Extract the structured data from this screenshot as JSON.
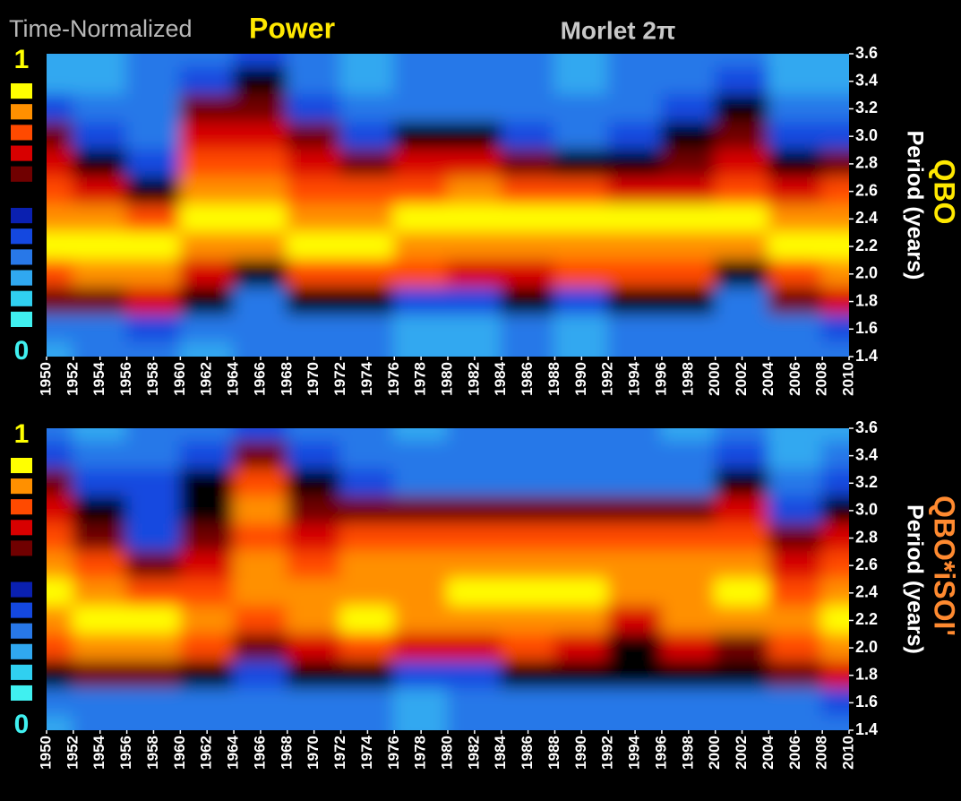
{
  "header": {
    "title": "Time-Normalized",
    "title_emphasis": "Power",
    "subtitle": "Morlet 2π"
  },
  "chart_data": [
    {
      "type": "heatmap",
      "label": "QBO",
      "label_color": "#ffe800",
      "ylabel": "Period (years)",
      "x": [
        1950,
        1954,
        1958,
        1962,
        1966,
        1970,
        1974,
        1978,
        1982,
        1986,
        1990,
        1994,
        1998,
        2002,
        2006,
        2010
      ],
      "y": [
        3.6,
        3.4,
        3.2,
        3,
        2.8,
        2.6,
        2.4,
        2.2,
        2,
        1.8,
        1.6,
        1.4
      ],
      "values": [
        [
          0.2,
          0.2,
          0.3,
          0.3,
          0.4,
          0.3,
          0.2,
          0.3,
          0.3,
          0.3,
          0.2,
          0.3,
          0.3,
          0.3,
          0.2,
          0.2
        ],
        [
          0.2,
          0.2,
          0.3,
          0.4,
          0.5,
          0.3,
          0.2,
          0.3,
          0.3,
          0.3,
          0.2,
          0.3,
          0.3,
          0.4,
          0.2,
          0.2
        ],
        [
          0.4,
          0.3,
          0.3,
          0.6,
          0.6,
          0.4,
          0.3,
          0.3,
          0.3,
          0.3,
          0.3,
          0.3,
          0.4,
          0.5,
          0.3,
          0.3
        ],
        [
          0.6,
          0.4,
          0.3,
          0.7,
          0.7,
          0.6,
          0.4,
          0.5,
          0.5,
          0.4,
          0.3,
          0.4,
          0.5,
          0.6,
          0.4,
          0.4
        ],
        [
          0.7,
          0.5,
          0.4,
          0.8,
          0.8,
          0.7,
          0.6,
          0.7,
          0.7,
          0.6,
          0.5,
          0.5,
          0.6,
          0.7,
          0.5,
          0.6
        ],
        [
          0.8,
          0.7,
          0.5,
          0.9,
          0.9,
          0.8,
          0.8,
          0.8,
          0.85,
          0.8,
          0.8,
          0.7,
          0.7,
          0.8,
          0.7,
          0.8
        ],
        [
          0.9,
          0.9,
          0.8,
          1,
          1,
          0.9,
          0.9,
          0.95,
          0.95,
          1,
          0.95,
          0.95,
          0.95,
          0.95,
          0.9,
          0.9
        ],
        [
          0.95,
          0.95,
          0.95,
          0.9,
          0.85,
          0.95,
          0.95,
          0.9,
          0.9,
          0.9,
          0.9,
          0.9,
          0.9,
          0.85,
          0.95,
          0.95
        ],
        [
          0.8,
          0.85,
          0.9,
          0.7,
          0.5,
          0.8,
          0.8,
          0.8,
          0.7,
          0.7,
          0.75,
          0.8,
          0.8,
          0.5,
          0.8,
          0.9
        ],
        [
          0.6,
          0.6,
          0.7,
          0.5,
          0.3,
          0.5,
          0.5,
          0.4,
          0.4,
          0.5,
          0.4,
          0.5,
          0.5,
          0.3,
          0.6,
          0.7
        ],
        [
          0.3,
          0.3,
          0.4,
          0.3,
          0.3,
          0.3,
          0.3,
          0.2,
          0.2,
          0.3,
          0.2,
          0.3,
          0.3,
          0.3,
          0.3,
          0.4
        ],
        [
          0.2,
          0.3,
          0.3,
          0.2,
          0.3,
          0.3,
          0.3,
          0.2,
          0.2,
          0.3,
          0.2,
          0.3,
          0.3,
          0.3,
          0.3,
          0.3
        ]
      ],
      "xlim": [
        1950,
        2010
      ],
      "ylim": [
        1.4,
        3.6
      ],
      "xticks": [
        1950,
        1952,
        1954,
        1956,
        1958,
        1960,
        1962,
        1964,
        1966,
        1968,
        1970,
        1972,
        1974,
        1976,
        1978,
        1980,
        1982,
        1984,
        1986,
        1988,
        1990,
        1992,
        1994,
        1996,
        1998,
        2000,
        2002,
        2004,
        2006,
        2008,
        2010
      ],
      "yticks": [
        1.4,
        1.6,
        1.8,
        {
          "value": 2,
          "label": "2.0"
        },
        2.2,
        2.4,
        2.6,
        2.8,
        {
          "value": 3,
          "label": "3.0"
        },
        3.2,
        3.4,
        3.6
      ],
      "colorbar": {
        "ticks": [
          0,
          1
        ],
        "colors": [
          "#40f0f0",
          "#30d0f0",
          "#30a8f0",
          "#2878e8",
          "#1448e0",
          "#0a20b0",
          "#000000",
          "#700000",
          "#d80000",
          "#ff4a00",
          "#ff9000",
          "#ffff00"
        ]
      }
    },
    {
      "type": "heatmap",
      "label": "QBO*iSOI'",
      "label_color": "#ff8a30",
      "ylabel": "Period (years)",
      "x": [
        1950,
        1954,
        1958,
        1962,
        1966,
        1970,
        1974,
        1978,
        1982,
        1986,
        1990,
        1994,
        1998,
        2002,
        2006,
        2010
      ],
      "y": [
        3.6,
        3.4,
        3.2,
        3,
        2.8,
        2.6,
        2.4,
        2.2,
        2,
        1.8,
        1.6,
        1.4
      ],
      "values": [
        [
          0.3,
          0.2,
          0.3,
          0.3,
          0.4,
          0.3,
          0.3,
          0.2,
          0.3,
          0.3,
          0.3,
          0.3,
          0.2,
          0.3,
          0.2,
          0.2
        ],
        [
          0.4,
          0.3,
          0.3,
          0.4,
          0.6,
          0.4,
          0.3,
          0.3,
          0.3,
          0.3,
          0.3,
          0.3,
          0.3,
          0.4,
          0.2,
          0.3
        ],
        [
          0.6,
          0.4,
          0.4,
          0.5,
          0.8,
          0.5,
          0.4,
          0.3,
          0.3,
          0.3,
          0.3,
          0.3,
          0.3,
          0.5,
          0.3,
          0.4
        ],
        [
          0.7,
          0.5,
          0.4,
          0.5,
          0.85,
          0.6,
          0.6,
          0.6,
          0.6,
          0.6,
          0.6,
          0.6,
          0.6,
          0.7,
          0.4,
          0.5
        ],
        [
          0.8,
          0.6,
          0.4,
          0.6,
          0.8,
          0.7,
          0.8,
          0.8,
          0.8,
          0.8,
          0.8,
          0.8,
          0.8,
          0.8,
          0.6,
          0.7
        ],
        [
          0.9,
          0.8,
          0.6,
          0.7,
          0.85,
          0.8,
          0.85,
          0.9,
          0.9,
          0.9,
          0.9,
          0.85,
          0.85,
          0.9,
          0.7,
          0.8
        ],
        [
          0.95,
          0.9,
          0.8,
          0.8,
          0.85,
          0.85,
          0.9,
          0.9,
          1,
          1,
          1,
          0.85,
          0.85,
          0.95,
          0.8,
          0.9
        ],
        [
          0.9,
          0.95,
          0.95,
          0.9,
          0.8,
          0.85,
          0.95,
          0.9,
          0.9,
          0.9,
          0.9,
          0.7,
          0.9,
          0.9,
          0.85,
          0.95
        ],
        [
          0.8,
          0.9,
          0.9,
          0.8,
          0.6,
          0.7,
          0.8,
          0.7,
          0.7,
          0.75,
          0.7,
          0.5,
          0.7,
          0.6,
          0.8,
          0.9
        ],
        [
          0.5,
          0.6,
          0.6,
          0.5,
          0.4,
          0.5,
          0.5,
          0.4,
          0.4,
          0.5,
          0.5,
          0.5,
          0.5,
          0.5,
          0.6,
          0.7
        ],
        [
          0.3,
          0.3,
          0.3,
          0.3,
          0.3,
          0.3,
          0.3,
          0.2,
          0.3,
          0.3,
          0.3,
          0.3,
          0.3,
          0.3,
          0.3,
          0.4
        ],
        [
          0.2,
          0.3,
          0.3,
          0.3,
          0.3,
          0.3,
          0.3,
          0.2,
          0.3,
          0.3,
          0.3,
          0.3,
          0.3,
          0.3,
          0.3,
          0.3
        ]
      ],
      "xlim": [
        1950,
        2010
      ],
      "ylim": [
        1.4,
        3.6
      ],
      "xticks": [
        1950,
        1952,
        1954,
        1956,
        1958,
        1960,
        1962,
        1964,
        1966,
        1968,
        1970,
        1972,
        1974,
        1976,
        1978,
        1980,
        1982,
        1984,
        1986,
        1988,
        1990,
        1992,
        1994,
        1996,
        1998,
        2000,
        2002,
        2004,
        2006,
        2008,
        2010
      ],
      "yticks": [
        1.4,
        1.6,
        1.8,
        {
          "value": 2,
          "label": "2.0"
        },
        2.2,
        2.4,
        2.6,
        2.8,
        {
          "value": 3,
          "label": "3.0"
        },
        3.2,
        3.4,
        3.6
      ],
      "colorbar": {
        "ticks": [
          0,
          1
        ],
        "colors": [
          "#40f0f0",
          "#30d0f0",
          "#30a8f0",
          "#2878e8",
          "#1448e0",
          "#0a20b0",
          "#000000",
          "#700000",
          "#d80000",
          "#ff4a00",
          "#ff9000",
          "#ffff00"
        ]
      }
    }
  ]
}
